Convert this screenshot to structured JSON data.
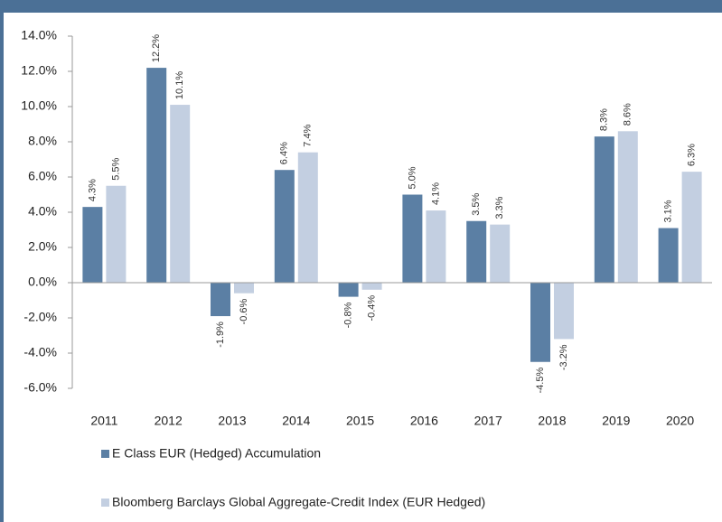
{
  "chart_data": {
    "type": "bar",
    "categories": [
      "2011",
      "2012",
      "2013",
      "2014",
      "2015",
      "2016",
      "2017",
      "2018",
      "2019",
      "2020"
    ],
    "series": [
      {
        "name": "E Class EUR (Hedged) Accumulation",
        "color": "#5b7fa4",
        "values": [
          4.3,
          12.2,
          -1.9,
          6.4,
          -0.8,
          5.0,
          3.5,
          -4.5,
          8.3,
          3.1
        ],
        "value_labels": [
          "4.3%",
          "12.2%",
          "-1.9%",
          "6.4%",
          "-0.8%",
          "5.0%",
          "3.5%",
          "-4.5%",
          "8.3%",
          "3.1%"
        ]
      },
      {
        "name": "Bloomberg Barclays Global Aggregate-Credit Index (EUR Hedged)",
        "color": "#c3cfe1",
        "values": [
          5.5,
          10.1,
          -0.6,
          7.4,
          -0.4,
          4.1,
          3.3,
          -3.2,
          8.6,
          6.3
        ],
        "value_labels": [
          "5.5%",
          "10.1%",
          "-0.6%",
          "7.4%",
          "-0.4%",
          "4.1%",
          "3.3%",
          "-3.2%",
          "8.6%",
          "6.3%"
        ]
      }
    ],
    "ylim": [
      -6,
      14
    ],
    "yticks": [
      {
        "value": -6,
        "label": "-6.0%"
      },
      {
        "value": -4,
        "label": "-4.0%"
      },
      {
        "value": -2,
        "label": "-2.0%"
      },
      {
        "value": 0,
        "label": "0.0%"
      },
      {
        "value": 2,
        "label": "2.0%"
      },
      {
        "value": 4,
        "label": "4.0%"
      },
      {
        "value": 6,
        "label": "6.0%"
      },
      {
        "value": 8,
        "label": "8.0%"
      },
      {
        "value": 10,
        "label": "10.0%"
      },
      {
        "value": 12,
        "label": "12.0%"
      },
      {
        "value": 14,
        "label": "14.0%"
      }
    ],
    "grid": false
  }
}
